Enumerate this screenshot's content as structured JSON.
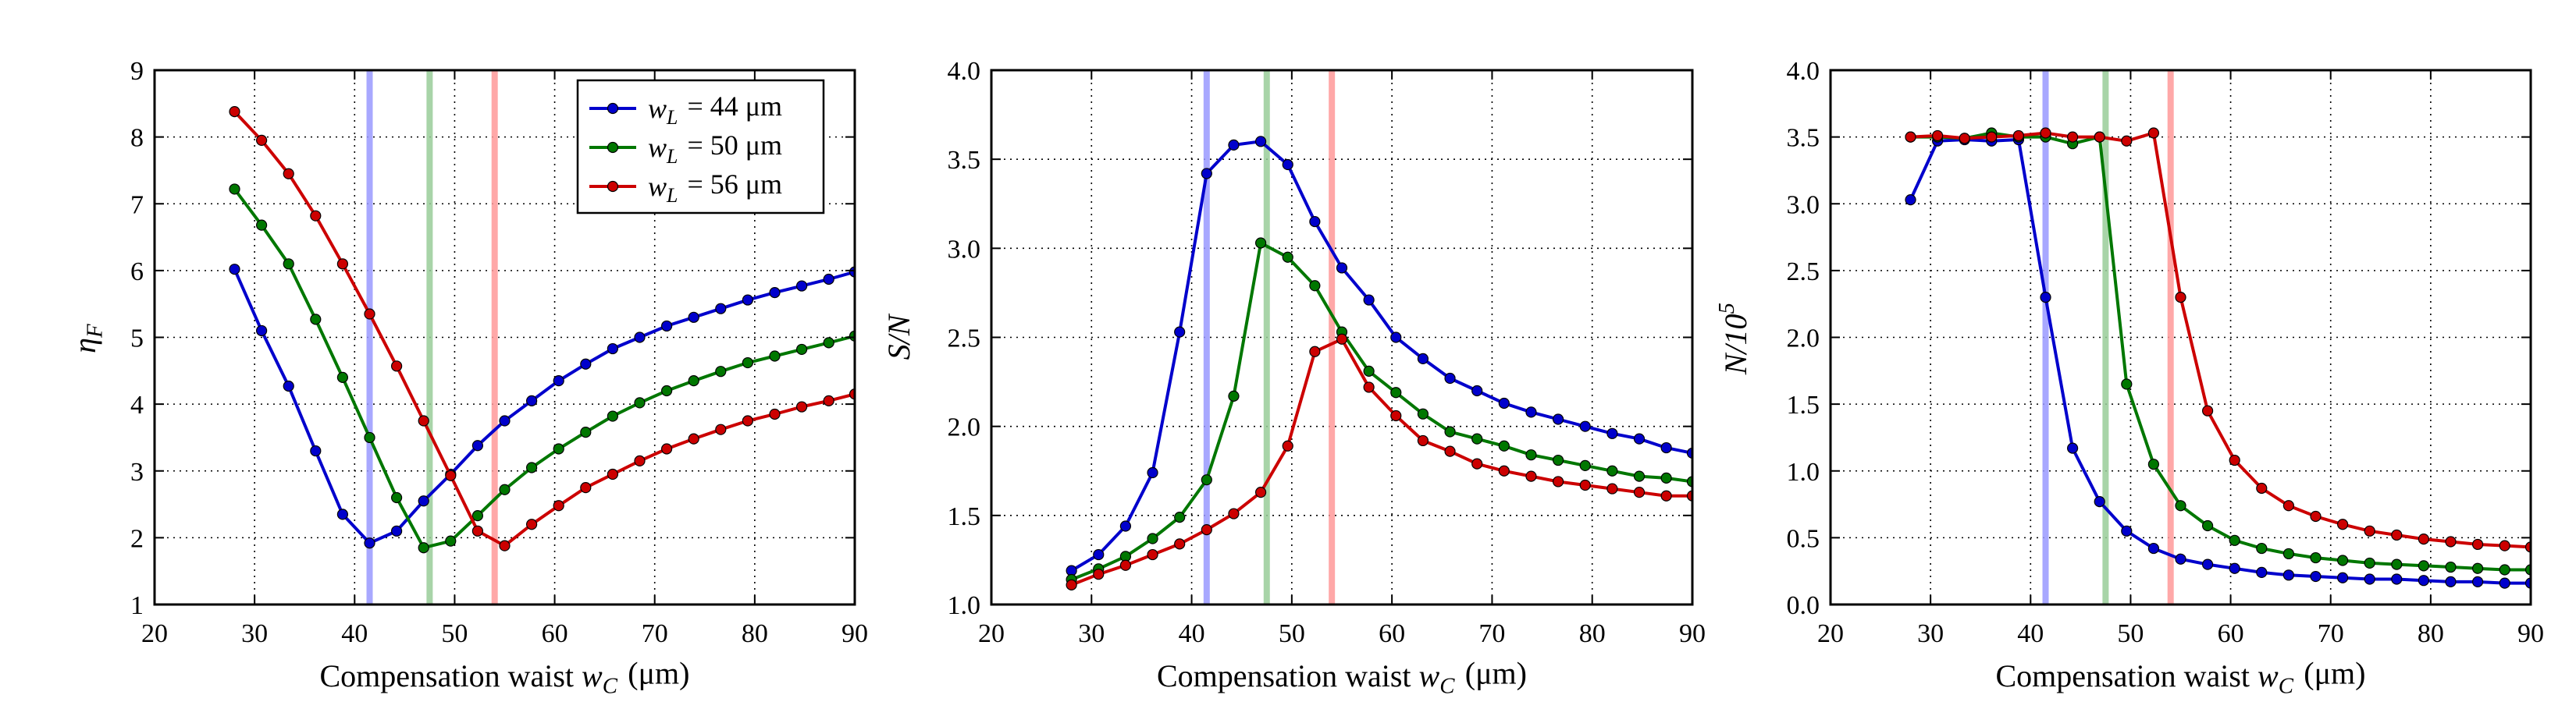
{
  "chart_data": [
    {
      "type": "line",
      "xlabel": "Compensation waist w_C (μm)",
      "ylabel": "η_F",
      "xlim": [
        20,
        90
      ],
      "ylim": [
        1,
        9
      ],
      "xticks": [
        "20",
        "30",
        "40",
        "50",
        "60",
        "70",
        "80",
        "90"
      ],
      "yticks": [
        "1",
        "2",
        "3",
        "4",
        "5",
        "6",
        "7",
        "8",
        "9"
      ],
      "grid": true,
      "legend": "top-right",
      "vlines": [
        {
          "x": 41.5,
          "color": "#9999ff"
        },
        {
          "x": 47.5,
          "color": "#99cc99"
        },
        {
          "x": 54,
          "color": "#ff9999"
        }
      ],
      "series": [
        {
          "name": "w_L = 44 μm",
          "color": "#0000cc",
          "x": [
            28,
            30.7,
            33.4,
            36.1,
            38.8,
            41.5,
            44.2,
            46.9,
            49.6,
            52.3,
            55,
            57.7,
            60.4,
            63.1,
            65.8,
            68.5,
            71.2,
            73.9,
            76.6,
            79.3,
            82,
            84.7,
            87.4,
            90
          ],
          "y": [
            6.02,
            5.1,
            4.27,
            3.3,
            2.35,
            1.92,
            2.1,
            2.55,
            2.95,
            3.38,
            3.75,
            4.05,
            4.35,
            4.6,
            4.83,
            5.0,
            5.17,
            5.3,
            5.43,
            5.56,
            5.67,
            5.77,
            5.87,
            5.98
          ]
        },
        {
          "name": "w_L = 50 μm",
          "color": "#007700",
          "x": [
            28,
            30.7,
            33.4,
            36.1,
            38.8,
            41.5,
            44.2,
            46.9,
            49.6,
            52.3,
            55,
            57.7,
            60.4,
            63.1,
            65.8,
            68.5,
            71.2,
            73.9,
            76.6,
            79.3,
            82,
            84.7,
            87.4,
            90
          ],
          "y": [
            7.22,
            6.68,
            6.1,
            5.27,
            4.4,
            3.5,
            2.6,
            1.85,
            1.95,
            2.33,
            2.72,
            3.05,
            3.33,
            3.58,
            3.82,
            4.02,
            4.2,
            4.35,
            4.49,
            4.62,
            4.72,
            4.82,
            4.92,
            5.02
          ]
        },
        {
          "name": "w_L = 56 μm",
          "color": "#cc0000",
          "x": [
            28,
            30.7,
            33.4,
            36.1,
            38.8,
            41.5,
            44.2,
            46.9,
            49.6,
            52.3,
            55,
            57.7,
            60.4,
            63.1,
            65.8,
            68.5,
            71.2,
            73.9,
            76.6,
            79.3,
            82,
            84.7,
            87.4,
            90
          ],
          "y": [
            8.38,
            7.95,
            7.45,
            6.82,
            6.1,
            5.35,
            4.57,
            3.75,
            2.93,
            2.1,
            1.88,
            2.2,
            2.48,
            2.75,
            2.95,
            3.15,
            3.33,
            3.48,
            3.62,
            3.75,
            3.85,
            3.96,
            4.05,
            4.15
          ]
        }
      ]
    },
    {
      "type": "line",
      "xlabel": "Compensation waist w_C (μm)",
      "ylabel": "S/N",
      "xlim": [
        20,
        90
      ],
      "ylim": [
        1.0,
        4.0
      ],
      "xticks": [
        "20",
        "30",
        "40",
        "50",
        "60",
        "70",
        "80",
        "90"
      ],
      "yticks": [
        "1.0",
        "1.5",
        "2.0",
        "2.5",
        "3.0",
        "3.5",
        "4.0"
      ],
      "grid": true,
      "vlines": [
        {
          "x": 41.5,
          "color": "#9999ff"
        },
        {
          "x": 47.5,
          "color": "#99cc99"
        },
        {
          "x": 54,
          "color": "#ff9999"
        }
      ],
      "series": [
        {
          "name": "w_L = 44 μm",
          "color": "#0000cc",
          "x": [
            28,
            30.7,
            33.4,
            36.1,
            38.8,
            41.5,
            44.2,
            46.9,
            49.6,
            52.3,
            55,
            57.7,
            60.4,
            63.1,
            65.8,
            68.5,
            71.2,
            73.9,
            76.6,
            79.3,
            82,
            84.7,
            87.4,
            90
          ],
          "y": [
            1.19,
            1.28,
            1.44,
            1.74,
            2.53,
            3.42,
            3.58,
            3.6,
            3.47,
            3.15,
            2.89,
            2.71,
            2.5,
            2.38,
            2.27,
            2.2,
            2.13,
            2.08,
            2.04,
            2.0,
            1.96,
            1.93,
            1.88,
            1.85
          ]
        },
        {
          "name": "w_L = 50 μm",
          "color": "#007700",
          "x": [
            28,
            30.7,
            33.4,
            36.1,
            38.8,
            41.5,
            44.2,
            46.9,
            49.6,
            52.3,
            55,
            57.7,
            60.4,
            63.1,
            65.8,
            68.5,
            71.2,
            73.9,
            76.6,
            79.3,
            82,
            84.7,
            87.4,
            90
          ],
          "y": [
            1.14,
            1.2,
            1.27,
            1.37,
            1.49,
            1.7,
            2.17,
            3.03,
            2.95,
            2.79,
            2.53,
            2.31,
            2.19,
            2.07,
            1.97,
            1.93,
            1.89,
            1.84,
            1.81,
            1.78,
            1.75,
            1.72,
            1.71,
            1.69
          ]
        },
        {
          "name": "w_L = 56 μm",
          "color": "#cc0000",
          "x": [
            28,
            30.7,
            33.4,
            36.1,
            38.8,
            41.5,
            44.2,
            46.9,
            49.6,
            52.3,
            55,
            57.7,
            60.4,
            63.1,
            65.8,
            68.5,
            71.2,
            73.9,
            76.6,
            79.3,
            82,
            84.7,
            87.4,
            90
          ],
          "y": [
            1.11,
            1.17,
            1.22,
            1.28,
            1.34,
            1.42,
            1.51,
            1.63,
            1.89,
            2.42,
            2.49,
            2.22,
            2.06,
            1.92,
            1.86,
            1.79,
            1.75,
            1.72,
            1.69,
            1.67,
            1.65,
            1.63,
            1.61,
            1.61
          ]
        }
      ]
    },
    {
      "type": "line",
      "xlabel": "Compensation waist w_C (μm)",
      "ylabel": "N/10^5",
      "xlim": [
        20,
        90
      ],
      "ylim": [
        0.0,
        4.0
      ],
      "xticks": [
        "20",
        "30",
        "40",
        "50",
        "60",
        "70",
        "80",
        "90"
      ],
      "yticks": [
        "0.0",
        "0.5",
        "1.0",
        "1.5",
        "2.0",
        "2.5",
        "3.0",
        "3.5",
        "4.0"
      ],
      "grid": true,
      "vlines": [
        {
          "x": 41.5,
          "color": "#9999ff"
        },
        {
          "x": 47.5,
          "color": "#99cc99"
        },
        {
          "x": 54,
          "color": "#ff9999"
        }
      ],
      "series": [
        {
          "name": "w_L = 44 μm",
          "color": "#0000cc",
          "x": [
            28,
            30.7,
            33.4,
            36.1,
            38.8,
            41.5,
            44.2,
            46.9,
            49.6,
            52.3,
            55,
            57.7,
            60.4,
            63.1,
            65.8,
            68.5,
            71.2,
            73.9,
            76.6,
            79.3,
            82,
            84.7,
            87.4,
            90
          ],
          "y": [
            3.03,
            3.47,
            3.48,
            3.47,
            3.48,
            2.3,
            1.17,
            0.77,
            0.55,
            0.42,
            0.34,
            0.3,
            0.27,
            0.24,
            0.22,
            0.21,
            0.2,
            0.19,
            0.19,
            0.18,
            0.17,
            0.17,
            0.16,
            0.16
          ]
        },
        {
          "name": "w_L = 50 μm",
          "color": "#007700",
          "x": [
            28,
            30.7,
            33.4,
            36.1,
            38.8,
            41.5,
            44.2,
            46.9,
            49.6,
            52.3,
            55,
            57.7,
            60.4,
            63.1,
            65.8,
            68.5,
            71.2,
            73.9,
            76.6,
            79.3,
            82,
            84.7,
            87.4,
            90
          ],
          "y": [
            3.5,
            3.5,
            3.49,
            3.53,
            3.5,
            3.5,
            3.45,
            3.5,
            1.65,
            1.05,
            0.74,
            0.59,
            0.48,
            0.42,
            0.38,
            0.35,
            0.33,
            0.31,
            0.3,
            0.29,
            0.28,
            0.27,
            0.26,
            0.26
          ]
        },
        {
          "name": "w_L = 56 μm",
          "color": "#cc0000",
          "x": [
            28,
            30.7,
            33.4,
            36.1,
            38.8,
            41.5,
            44.2,
            46.9,
            49.6,
            52.3,
            55,
            57.7,
            60.4,
            63.1,
            65.8,
            68.5,
            71.2,
            73.9,
            76.6,
            79.3,
            82,
            84.7,
            87.4,
            90
          ],
          "y": [
            3.5,
            3.51,
            3.49,
            3.5,
            3.51,
            3.53,
            3.5,
            3.5,
            3.47,
            3.53,
            2.3,
            1.45,
            1.08,
            0.87,
            0.74,
            0.66,
            0.6,
            0.55,
            0.52,
            0.49,
            0.47,
            0.45,
            0.44,
            0.43
          ]
        }
      ]
    }
  ]
}
